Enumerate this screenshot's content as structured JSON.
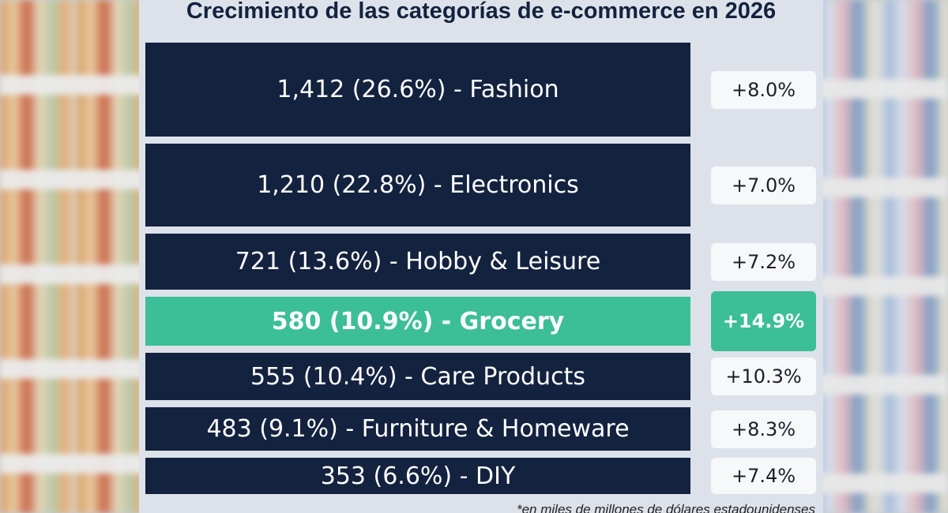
{
  "chart_data": {
    "type": "bar",
    "title": "Crecimiento de las categorías de e-commerce en 2026",
    "footnote": "*en miles de millones de dólares estadounidenses",
    "highlight_color": "#3cbe96",
    "bar_color": "#13223f",
    "highlighted_category": "Grocery",
    "categories": [
      "Fashion",
      "Electronics",
      "Hobby & Leisure",
      "Grocery",
      "Care Products",
      "Furniture & Homeware",
      "DIY"
    ],
    "values": [
      1412,
      1210,
      721,
      580,
      555,
      483,
      353
    ],
    "shares_pct": [
      26.6,
      22.8,
      13.6,
      10.9,
      10.4,
      9.1,
      6.6
    ],
    "growth_pct": [
      8.0,
      7.0,
      7.2,
      14.9,
      10.3,
      8.3,
      7.4
    ],
    "bar_labels": [
      "1,412 (26.6%) - Fashion",
      "1,210 (22.8%) - Electronics",
      "721 (13.6%) - Hobby & Leisure",
      "580 (10.9%) - Grocery",
      "555 (10.4%) - Care Products",
      "483 (9.1%) - Furniture & Homeware",
      "353 (6.6%) - DIY"
    ],
    "growth_labels": [
      "+8.0%",
      "+7.0%",
      "+7.2%",
      "+14.9%",
      "+10.3%",
      "+8.3%",
      "+7.4%"
    ]
  }
}
